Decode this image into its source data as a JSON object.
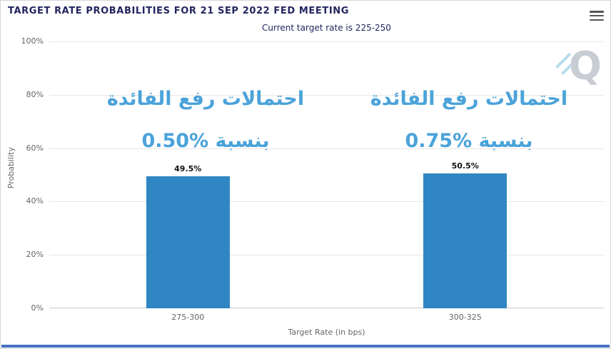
{
  "watermark": {
    "letter": "Q"
  },
  "icons": {
    "menu": "hamburger-menu-icon"
  },
  "colors": {
    "title_text": "#23265f",
    "annotation_text": "#4ba3da",
    "bottom_bar": "#4472c4",
    "axis_text": "#666666",
    "gridline": "#e7e7e7"
  },
  "chart_data": {
    "type": "bar",
    "title": "TARGET RATE PROBABILITIES FOR 21 SEP 2022 FED MEETING",
    "subtitle": "Current target rate is 225-250",
    "categories": [
      "275-300",
      "300-325"
    ],
    "values": [
      49.5,
      50.5
    ],
    "data_labels": [
      "49.5%",
      "50.5%"
    ],
    "xlabel": "Target Rate (in bps)",
    "ylabel": "Probability",
    "ylim": [
      0,
      100
    ],
    "yticks": [
      "0%",
      "20%",
      "40%",
      "60%",
      "80%",
      "100%"
    ],
    "grid": true,
    "legend": false,
    "bar_color": "#2f86c3",
    "annotations": [
      {
        "line1": "احتمالات رفع الفائدة",
        "line2": "بنسبة %0.50"
      },
      {
        "line1": "احتمالات رفع الفائدة",
        "line2": "بنسبة %0.75"
      }
    ]
  }
}
